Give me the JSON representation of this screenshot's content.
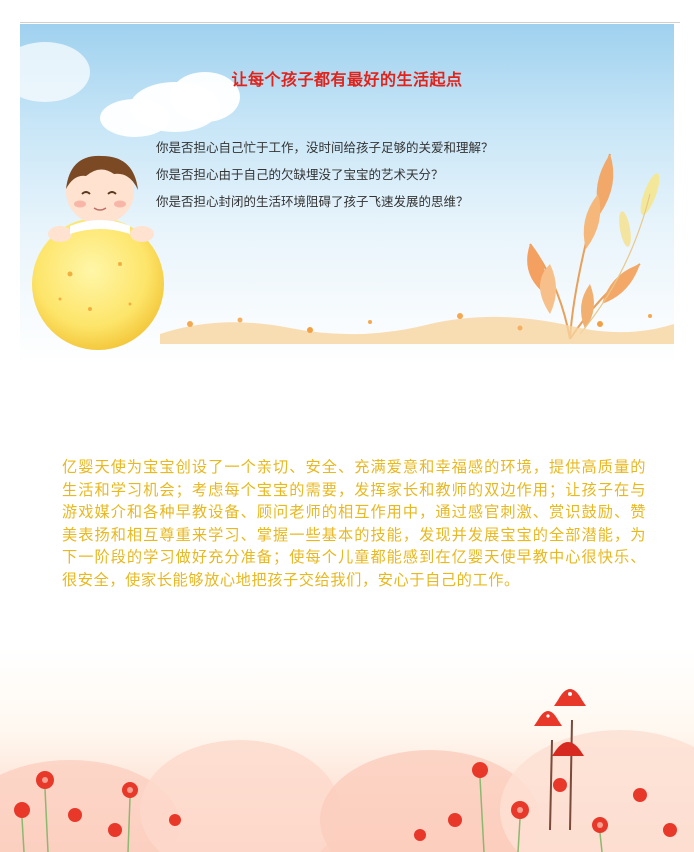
{
  "banner": {
    "title": "让每个孩子都有最好的生活起点",
    "questions": [
      "你是否担心自己忙于工作，没时间给孩子足够的关爱和理解？",
      "你是否担心由于自己的欠缺埋没了宝宝的艺术天分？",
      "你是否担心封闭的生活环境阻碍了孩子飞速发展的思维？"
    ]
  },
  "intro": {
    "text": "亿婴天使为宝宝创设了一个亲切、安全、充满爱意和幸福感的环境，提供高质量的生活和学习机会；考虑每个宝宝的需要，发挥家长和教师的双边作用；让孩子在与游戏媒介和各种早教设备、顾问老师的相互作用中，通过感官刺激、赏识鼓励、赞美表扬和相互尊重来学习、掌握一些基本的技能，发现并发展宝宝的全部潜能，为 下一阶段的学习做好充分准备；使每个儿童都能感到在亿婴天使早教中心很快乐、很安全，使家长能够放心地把孩子交给我们，安心于自己的工作。"
  },
  "colors": {
    "title": "#e0241b",
    "intro_text": "#e8b820",
    "question_text": "#333333"
  },
  "icons": [
    "cartoon-child-illustration",
    "yellow-moon-ball",
    "autumn-plant-illustration",
    "red-flowers-illustration",
    "mushroom-house-illustration"
  ]
}
